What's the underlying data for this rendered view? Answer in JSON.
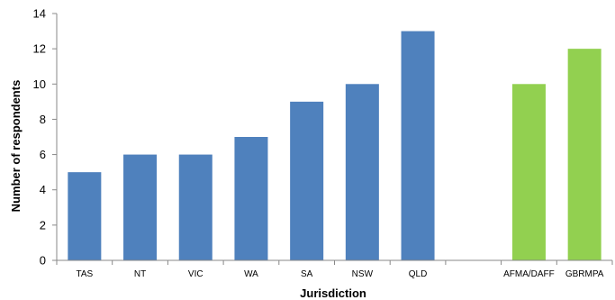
{
  "chart_data": {
    "type": "bar",
    "title": "",
    "xlabel": "Jurisdiction",
    "ylabel": "Number of respondents",
    "ylim": [
      0,
      14
    ],
    "yticks": [
      0,
      2,
      4,
      6,
      8,
      10,
      12,
      14
    ],
    "grid": false,
    "legend": "none",
    "categories": [
      "TAS",
      "NT",
      "VIC",
      "WA",
      "SA",
      "NSW",
      "QLD",
      "",
      "AFMA/DAFF",
      "GBRMPA"
    ],
    "values": [
      5,
      6,
      6,
      7,
      9,
      10,
      13,
      null,
      10,
      12
    ],
    "bar_colors": [
      "#4f81bd",
      "#4f81bd",
      "#4f81bd",
      "#4f81bd",
      "#4f81bd",
      "#4f81bd",
      "#4f81bd",
      null,
      "#92d050",
      "#92d050"
    ]
  }
}
